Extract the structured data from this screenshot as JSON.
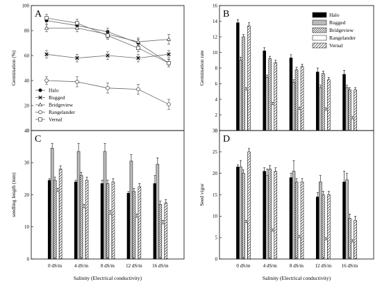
{
  "chart_data": [
    {
      "panel_label": "A",
      "type": "line",
      "x": [
        "0 dS/m",
        "4 dS/m",
        "8 dS/m",
        "12 dS/m",
        "16 dS/m"
      ],
      "ylabel": "Germination (%)",
      "ylim": [
        0,
        100
      ],
      "yticks": [
        0,
        20,
        40,
        60,
        80,
        100
      ],
      "legend_position": "bottom-left",
      "series": [
        {
          "name": "Halo",
          "marker": "filled-circle",
          "values": [
            88,
            84,
            79,
            70,
            54
          ],
          "err": [
            3,
            3,
            3,
            3,
            3
          ]
        },
        {
          "name": "Rugged",
          "marker": "x",
          "values": [
            61,
            58,
            60,
            58,
            61
          ],
          "err": [
            3,
            3,
            3,
            3,
            3
          ]
        },
        {
          "name": "Bridgeview",
          "marker": "triangle",
          "values": [
            82,
            82,
            77,
            71,
            73
          ],
          "err": [
            3,
            3,
            3,
            3,
            4
          ]
        },
        {
          "name": "Rangelander",
          "marker": "open-circle",
          "values": [
            40,
            39,
            34,
            33,
            21
          ],
          "err": [
            3,
            4,
            4,
            4,
            4
          ]
        },
        {
          "name": "Vernal",
          "marker": "open-square",
          "values": [
            90,
            86,
            76,
            66,
            54
          ],
          "err": [
            3,
            3,
            3,
            3,
            3
          ]
        }
      ]
    },
    {
      "panel_label": "B",
      "type": "bar",
      "categories": [
        "0 dS/m",
        "4 dS/m",
        "8 dS/m",
        "12 dS/m",
        "16 dS/m"
      ],
      "ylabel": "Germination rate",
      "ylim": [
        0,
        16
      ],
      "yticks": [
        0,
        2,
        4,
        6,
        8,
        10,
        12,
        14,
        16
      ],
      "legend_position": "top-right",
      "series": [
        {
          "name": "Halo",
          "values": [
            13.8,
            10.2,
            9.3,
            7.5,
            7.2
          ],
          "err": [
            0.4,
            0.4,
            0.4,
            0.5,
            0.5
          ]
        },
        {
          "name": "Rugged",
          "values": [
            9.0,
            6.8,
            6.2,
            5.5,
            5.5
          ],
          "err": [
            0.4,
            0.3,
            0.3,
            0.3,
            0.3
          ]
        },
        {
          "name": "Bridgeview",
          "values": [
            12.0,
            9.2,
            7.8,
            7.3,
            5.2
          ],
          "err": [
            0.3,
            0.3,
            0.3,
            0.3,
            0.3
          ]
        },
        {
          "name": "Rangelander",
          "values": [
            5.2,
            3.3,
            2.7,
            2.6,
            1.5
          ],
          "err": [
            0.3,
            0.3,
            0.3,
            0.3,
            0.3
          ]
        },
        {
          "name": "Vernal",
          "values": [
            13.4,
            8.7,
            8.2,
            6.5,
            5.2
          ],
          "err": [
            0.4,
            0.3,
            0.3,
            0.3,
            0.3
          ]
        }
      ]
    },
    {
      "panel_label": "C",
      "type": "bar",
      "categories": [
        "0 dS/m",
        "4 dS/m",
        "8 dS/m",
        "12 dS/m",
        "16 dS/m"
      ],
      "ylabel": "seedling length (mm)",
      "ylim": [
        0,
        40
      ],
      "yticks": [
        0,
        10,
        20,
        30,
        40
      ],
      "series": [
        {
          "name": "Halo",
          "values": [
            24.5,
            24.0,
            23.5,
            20.5,
            23.5
          ],
          "err": [
            0.5,
            0.5,
            1,
            0.5,
            2.5
          ]
        },
        {
          "name": "Rugged",
          "values": [
            34.5,
            33.5,
            33.5,
            30.5,
            29.5
          ],
          "err": [
            1.5,
            2.5,
            2.5,
            2,
            2
          ]
        },
        {
          "name": "Bridgeview",
          "values": [
            24.5,
            26.0,
            23.5,
            21.0,
            17.0
          ],
          "err": [
            1,
            1,
            1,
            1,
            1
          ]
        },
        {
          "name": "Rangelander",
          "values": [
            21.0,
            16.0,
            14.0,
            13.0,
            11.0
          ],
          "err": [
            1,
            1,
            1,
            1,
            1
          ]
        },
        {
          "name": "Vernal",
          "values": [
            28.0,
            24.5,
            24.0,
            22.5,
            17.5
          ],
          "err": [
            1,
            1,
            1,
            1,
            1
          ]
        }
      ]
    },
    {
      "panel_label": "D",
      "type": "bar",
      "categories": [
        "0 dS/m",
        "4 dS/m",
        "8 dS/m",
        "12 dS/m",
        "16 dS/m"
      ],
      "ylabel": "Seed vigor",
      "ylim": [
        0,
        30
      ],
      "yticks": [
        0,
        5,
        10,
        15,
        20,
        25,
        30
      ],
      "series": [
        {
          "name": "Halo",
          "values": [
            21.5,
            20.5,
            19.0,
            14.5,
            18.0
          ],
          "err": [
            0.5,
            0.8,
            1,
            1,
            2.5
          ]
        },
        {
          "name": "Rugged",
          "values": [
            21.5,
            19.5,
            20.5,
            18.0,
            18.5
          ],
          "err": [
            1.5,
            1.5,
            2.5,
            1.5,
            1.5
          ]
        },
        {
          "name": "Bridgeview",
          "values": [
            20.0,
            21.0,
            18.0,
            15.0,
            9.5
          ],
          "err": [
            0.8,
            0.8,
            0.8,
            0.8,
            1
          ]
        },
        {
          "name": "Rangelander",
          "values": [
            8.5,
            6.5,
            5.0,
            4.5,
            4.0
          ],
          "err": [
            0.5,
            0.5,
            0.5,
            0.5,
            0.5
          ]
        },
        {
          "name": "Vernal",
          "values": [
            25.0,
            20.5,
            18.0,
            15.0,
            9.0
          ],
          "err": [
            0.8,
            0.8,
            0.8,
            0.8,
            1
          ]
        }
      ]
    }
  ],
  "shared_xlabel": "Salinity (Electrical conductivity)",
  "colors": {
    "axis": "#000000",
    "halo": "#000000",
    "rugged": "#bbbbbb",
    "rangelander": "#ffffff"
  }
}
